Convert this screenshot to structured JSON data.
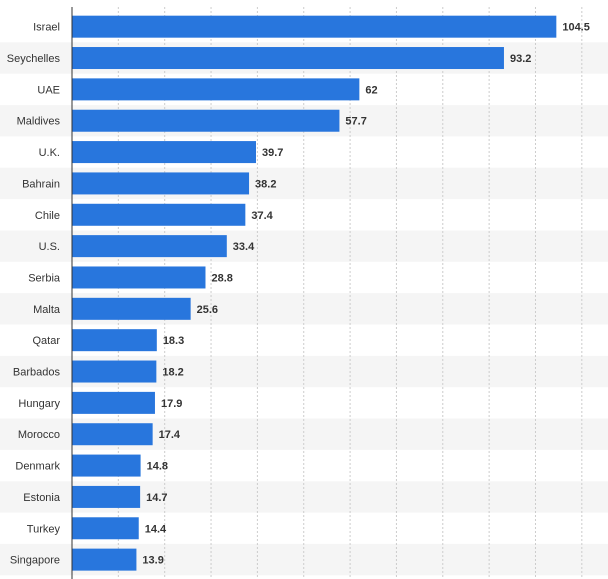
{
  "chart_data": {
    "type": "bar",
    "orientation": "horizontal",
    "categories": [
      "Israel",
      "Seychelles",
      "UAE",
      "Maldives",
      "U.K.",
      "Bahrain",
      "Chile",
      "U.S.",
      "Serbia",
      "Malta",
      "Qatar",
      "Barbados",
      "Hungary",
      "Morocco",
      "Denmark",
      "Estonia",
      "Turkey",
      "Singapore"
    ],
    "values": [
      104.5,
      93.2,
      62,
      57.7,
      39.7,
      38.2,
      37.4,
      33.4,
      28.8,
      25.6,
      18.3,
      18.2,
      17.9,
      17.4,
      14.8,
      14.7,
      14.4,
      13.9
    ],
    "value_labels": [
      "104.5",
      "93.2",
      "62",
      "57.7",
      "39.7",
      "38.2",
      "37.4",
      "33.4",
      "28.8",
      "25.6",
      "18.3",
      "18.2",
      "17.9",
      "17.4",
      "14.8",
      "14.7",
      "14.4",
      "13.9"
    ],
    "title": "",
    "xlabel": "",
    "ylabel": "",
    "xlim": [
      0,
      115
    ],
    "grid": true,
    "legend": "none",
    "colors": {
      "bar": "#2876dd",
      "grid": "#cccccc",
      "band": "#f5f5f5",
      "axis": "#333333"
    }
  }
}
